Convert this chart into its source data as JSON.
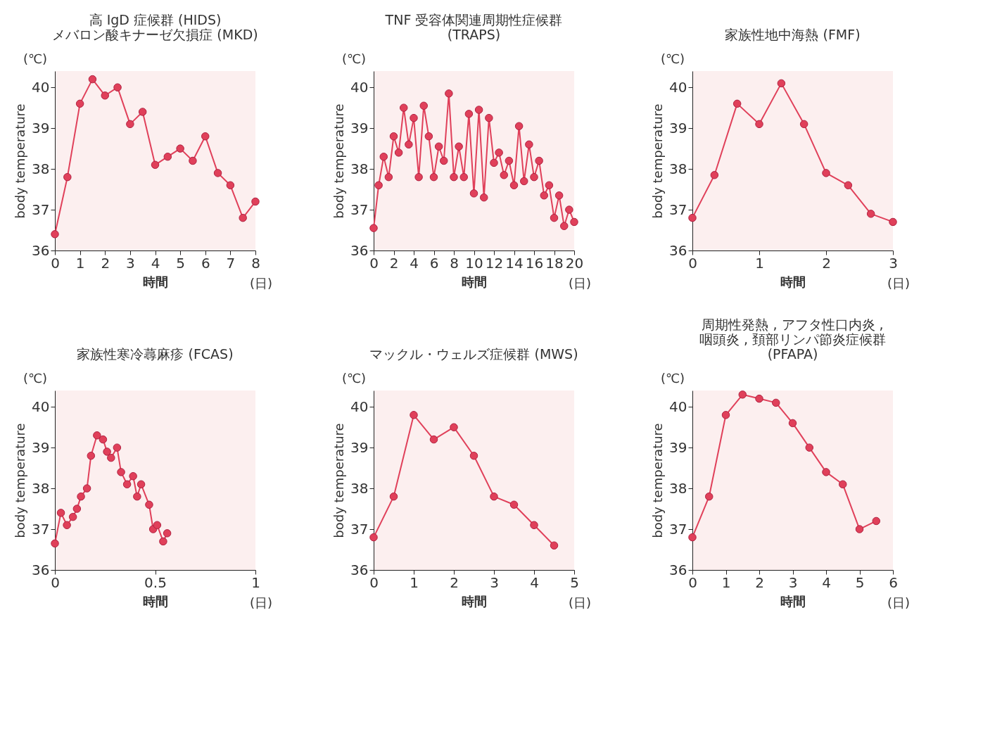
{
  "chart_data": [
    {
      "type": "line",
      "title": "高 IgD 症候群 (HIDS)\nメバロン酸キナーゼ欠損症 (MKD)",
      "xlabel": "時間",
      "ylabel": "body temperature",
      "annotations": [
        "(℃)",
        "(日)"
      ],
      "marker": "circle",
      "grid": false,
      "x": [
        0,
        0.5,
        1,
        1.5,
        2,
        2.5,
        3,
        3.5,
        4,
        4.5,
        5,
        5.5,
        6,
        6.5,
        7,
        7.5,
        8
      ],
      "series": [
        {
          "color": "#e0405a",
          "values": [
            36.4,
            37.8,
            39.6,
            40.2,
            39.8,
            40.0,
            39.1,
            39.4,
            38.1,
            38.3,
            38.5,
            38.2,
            38.8,
            37.9,
            37.6,
            36.8,
            37.2
          ]
        }
      ],
      "xlim": [
        0,
        8
      ],
      "xticks": [
        0,
        1,
        2,
        3,
        4,
        5,
        6,
        7,
        8
      ],
      "ylim": [
        36,
        40.4
      ],
      "yticks": [
        36,
        37,
        38,
        39,
        40
      ]
    },
    {
      "type": "line",
      "title": "TNF 受容体関連周期性症候群\n(TRAPS)",
      "xlabel": "時間",
      "ylabel": "body temperature",
      "annotations": [
        "(℃)",
        "(日)"
      ],
      "marker": "circle",
      "grid": false,
      "x": [
        0,
        0.5,
        1,
        1.5,
        2,
        2.5,
        3,
        3.5,
        4,
        4.5,
        5,
        5.5,
        6,
        6.5,
        7,
        7.5,
        8,
        8.5,
        9,
        9.5,
        10,
        10.5,
        11,
        11.5,
        12,
        12.5,
        13,
        13.5,
        14,
        14.5,
        15,
        15.5,
        16,
        16.5,
        17,
        17.5,
        18,
        18.5,
        19,
        19.5,
        20
      ],
      "series": [
        {
          "color": "#e0405a",
          "values": [
            36.55,
            37.6,
            38.3,
            37.8,
            38.8,
            38.4,
            39.5,
            38.6,
            39.25,
            37.8,
            39.55,
            38.8,
            37.8,
            38.55,
            38.2,
            39.85,
            37.8,
            38.55,
            37.8,
            39.35,
            37.4,
            39.45,
            37.3,
            39.25,
            38.15,
            38.4,
            37.85,
            38.2,
            37.6,
            39.05,
            37.7,
            38.6,
            37.8,
            38.2,
            37.35,
            37.6,
            36.8,
            37.35,
            36.6,
            37.0,
            36.7
          ]
        }
      ],
      "xlim": [
        0,
        20
      ],
      "xticks": [
        0,
        2,
        4,
        6,
        8,
        10,
        12,
        14,
        16,
        18,
        20
      ],
      "ylim": [
        36,
        40.4
      ],
      "yticks": [
        36,
        37,
        38,
        39,
        40
      ]
    },
    {
      "type": "line",
      "title": "家族性地中海熱 (FMF)",
      "xlabel": "時間",
      "ylabel": "body temperature",
      "annotations": [
        "(℃)",
        "(日)"
      ],
      "marker": "circle",
      "grid": false,
      "x": [
        0,
        0.33,
        0.67,
        1,
        1.33,
        1.67,
        2,
        2.33,
        2.67,
        3
      ],
      "series": [
        {
          "color": "#e0405a",
          "values": [
            36.8,
            37.85,
            39.6,
            39.1,
            40.1,
            39.1,
            37.9,
            37.6,
            36.9,
            36.7
          ]
        }
      ],
      "xlim": [
        0,
        3
      ],
      "xticks": [
        0,
        1,
        2,
        3
      ],
      "ylim": [
        36,
        40.4
      ],
      "yticks": [
        36,
        37,
        38,
        39,
        40
      ]
    },
    {
      "type": "line",
      "title": "家族性寒冷蕁麻疹 (FCAS)",
      "xlabel": "時間",
      "ylabel": "body temperature",
      "annotations": [
        "(℃)",
        "(日)"
      ],
      "marker": "circle",
      "grid": false,
      "x": [
        0,
        0.03,
        0.06,
        0.09,
        0.11,
        0.13,
        0.16,
        0.18,
        0.21,
        0.24,
        0.26,
        0.28,
        0.31,
        0.33,
        0.36,
        0.39,
        0.41,
        0.43,
        0.47,
        0.49,
        0.51,
        0.54,
        0.56
      ],
      "series": [
        {
          "color": "#e0405a",
          "values": [
            36.65,
            37.4,
            37.1,
            37.3,
            37.5,
            37.8,
            38.0,
            38.8,
            39.3,
            39.2,
            38.9,
            38.75,
            39.0,
            38.4,
            38.1,
            38.3,
            37.8,
            38.1,
            37.6,
            37.0,
            37.1,
            36.7,
            36.9
          ]
        }
      ],
      "xlim": [
        0,
        1
      ],
      "xticks": [
        0,
        0.5,
        1
      ],
      "ylim": [
        36,
        40.4
      ],
      "yticks": [
        36,
        37,
        38,
        39,
        40
      ]
    },
    {
      "type": "line",
      "title": "マックル・ウェルズ症候群 (MWS)",
      "xlabel": "時間",
      "ylabel": "body temperature",
      "annotations": [
        "(℃)",
        "(日)"
      ],
      "marker": "circle",
      "grid": false,
      "x": [
        0,
        0.5,
        1,
        1.5,
        2,
        2.5,
        3,
        3.5,
        4,
        4.5
      ],
      "series": [
        {
          "color": "#e0405a",
          "values": [
            36.8,
            37.8,
            39.8,
            39.2,
            39.5,
            38.8,
            37.8,
            37.6,
            37.1,
            36.6
          ]
        }
      ],
      "xlim": [
        0,
        5
      ],
      "xticks": [
        0,
        1,
        2,
        3,
        4,
        5
      ],
      "ylim": [
        36,
        40.4
      ],
      "yticks": [
        36,
        37,
        38,
        39,
        40
      ]
    },
    {
      "type": "line",
      "title": "周期性発熱 , アフタ性口内炎 ,\n咽頭炎 , 頚部リンパ節炎症候群\n(PFAPA)",
      "xlabel": "時間",
      "ylabel": "body temperature",
      "annotations": [
        "(℃)",
        "(日)"
      ],
      "marker": "circle",
      "grid": false,
      "x": [
        0,
        0.5,
        1,
        1.5,
        2,
        2.5,
        3,
        3.5,
        4,
        4.5,
        5,
        5.5
      ],
      "series": [
        {
          "color": "#e0405a",
          "values": [
            36.8,
            37.8,
            39.8,
            40.3,
            40.2,
            40.1,
            39.6,
            39.0,
            38.4,
            38.1,
            37.0,
            37.2
          ]
        }
      ],
      "xlim": [
        0,
        6
      ],
      "xticks": [
        0,
        1,
        2,
        3,
        4,
        5,
        6
      ],
      "ylim": [
        36,
        40.4
      ],
      "yticks": [
        36,
        37,
        38,
        39,
        40
      ]
    }
  ]
}
